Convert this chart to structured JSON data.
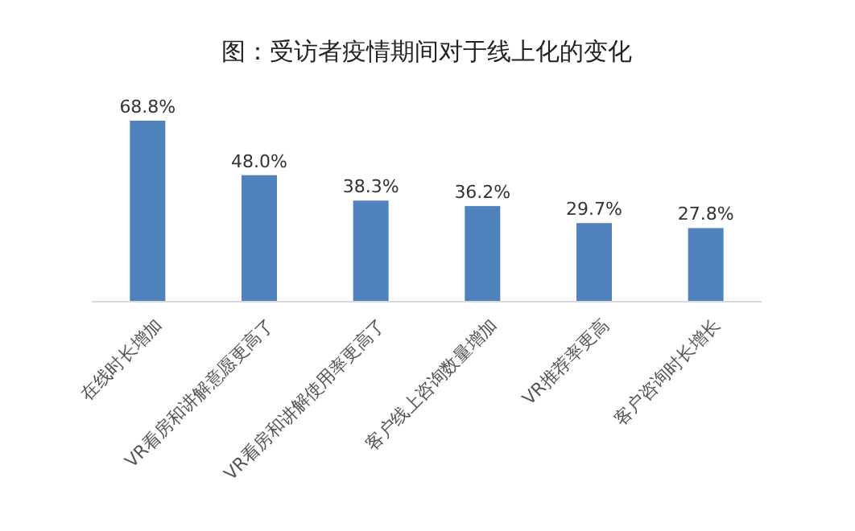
{
  "chart_data": {
    "type": "bar",
    "title": "图：受访者疫情期间对于线上化的变化",
    "categories": [
      "在线时长增加",
      "VR看房和讲解意愿更高了",
      "VR看房和讲解使用率更高了",
      "客户线上咨询数量增加",
      "VR推荐率更高",
      "客户咨询时长增长"
    ],
    "values": [
      68.8,
      48.0,
      38.3,
      36.2,
      29.7,
      27.8
    ],
    "value_labels": [
      "68.8%",
      "48.0%",
      "38.3%",
      "36.2%",
      "29.7%",
      "27.8%"
    ],
    "color": "#4f81bd"
  }
}
